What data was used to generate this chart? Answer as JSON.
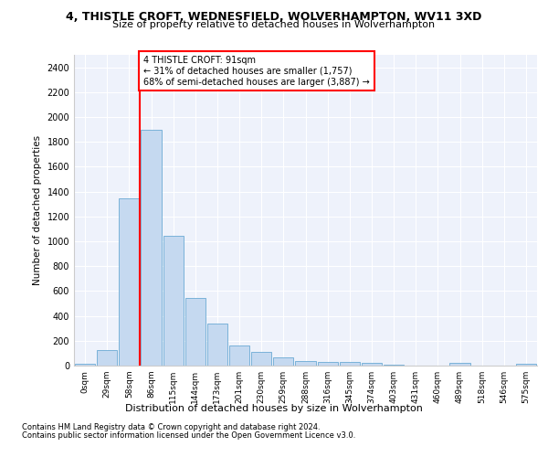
{
  "title1": "4, THISTLE CROFT, WEDNESFIELD, WOLVERHAMPTON, WV11 3XD",
  "title2": "Size of property relative to detached houses in Wolverhampton",
  "xlabel": "Distribution of detached houses by size in Wolverhampton",
  "ylabel": "Number of detached properties",
  "bin_labels": [
    "0sqm",
    "29sqm",
    "58sqm",
    "86sqm",
    "115sqm",
    "144sqm",
    "173sqm",
    "201sqm",
    "230sqm",
    "259sqm",
    "288sqm",
    "316sqm",
    "345sqm",
    "374sqm",
    "403sqm",
    "431sqm",
    "460sqm",
    "489sqm",
    "518sqm",
    "546sqm",
    "575sqm"
  ],
  "bar_values": [
    15,
    125,
    1345,
    1895,
    1045,
    545,
    335,
    165,
    110,
    63,
    40,
    30,
    27,
    20,
    10,
    0,
    0,
    20,
    0,
    0,
    15
  ],
  "bar_color": "#c5d9f0",
  "bar_edge_color": "#6aaad4",
  "annotation_text": "4 THISTLE CROFT: 91sqm\n← 31% of detached houses are smaller (1,757)\n68% of semi-detached houses are larger (3,887) →",
  "ylim": [
    0,
    2500
  ],
  "yticks": [
    0,
    200,
    400,
    600,
    800,
    1000,
    1200,
    1400,
    1600,
    1800,
    2000,
    2200,
    2400
  ],
  "footnote1": "Contains HM Land Registry data © Crown copyright and database right 2024.",
  "footnote2": "Contains public sector information licensed under the Open Government Licence v3.0.",
  "bg_color": "#eef2fb",
  "fig_bg_color": "#ffffff"
}
